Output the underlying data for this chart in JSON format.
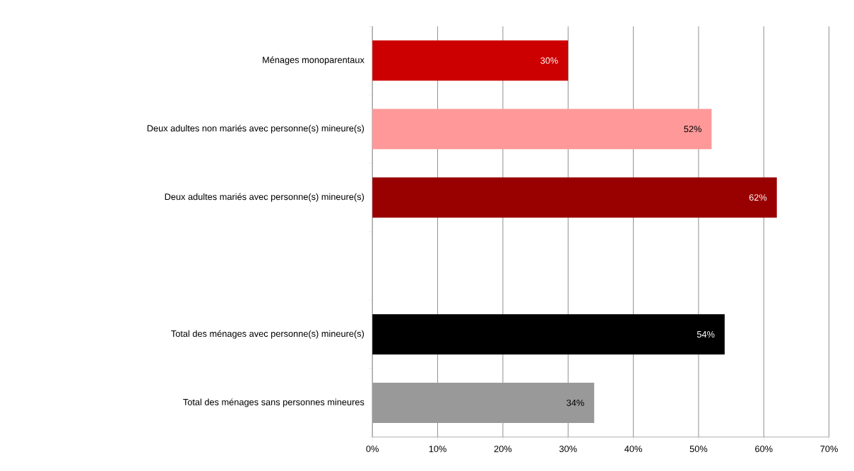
{
  "chart_data": {
    "type": "bar",
    "orientation": "horizontal",
    "categories": [
      "Ménages monoparentaux",
      "Deux adultes non mariés avec personne(s) mineure(s)",
      "Deux adultes mariés avec personne(s) mineure(s)",
      null,
      "Total des ménages avec personne(s) mineure(s)",
      "Total des ménages sans personnes mineures"
    ],
    "values": [
      30,
      52,
      62,
      null,
      54,
      34
    ],
    "value_labels": [
      "30%",
      "52%",
      "62%",
      null,
      "54%",
      "34%"
    ],
    "colors": [
      "#cc0000",
      "#ff9999",
      "#990000",
      "#ffffff",
      "#000000",
      "#999999"
    ],
    "xlim": [
      0,
      70
    ],
    "xticks": [
      {
        "value": 0,
        "label": "0%"
      },
      {
        "value": 10,
        "label": "10%"
      },
      {
        "value": 20,
        "label": "20%"
      },
      {
        "value": 30,
        "label": "30%"
      },
      {
        "value": 40,
        "label": "40%"
      },
      {
        "value": 50,
        "label": "50%"
      },
      {
        "value": 60,
        "label": "60%"
      },
      {
        "value": 70,
        "label": "70%"
      }
    ],
    "grid": "x"
  }
}
